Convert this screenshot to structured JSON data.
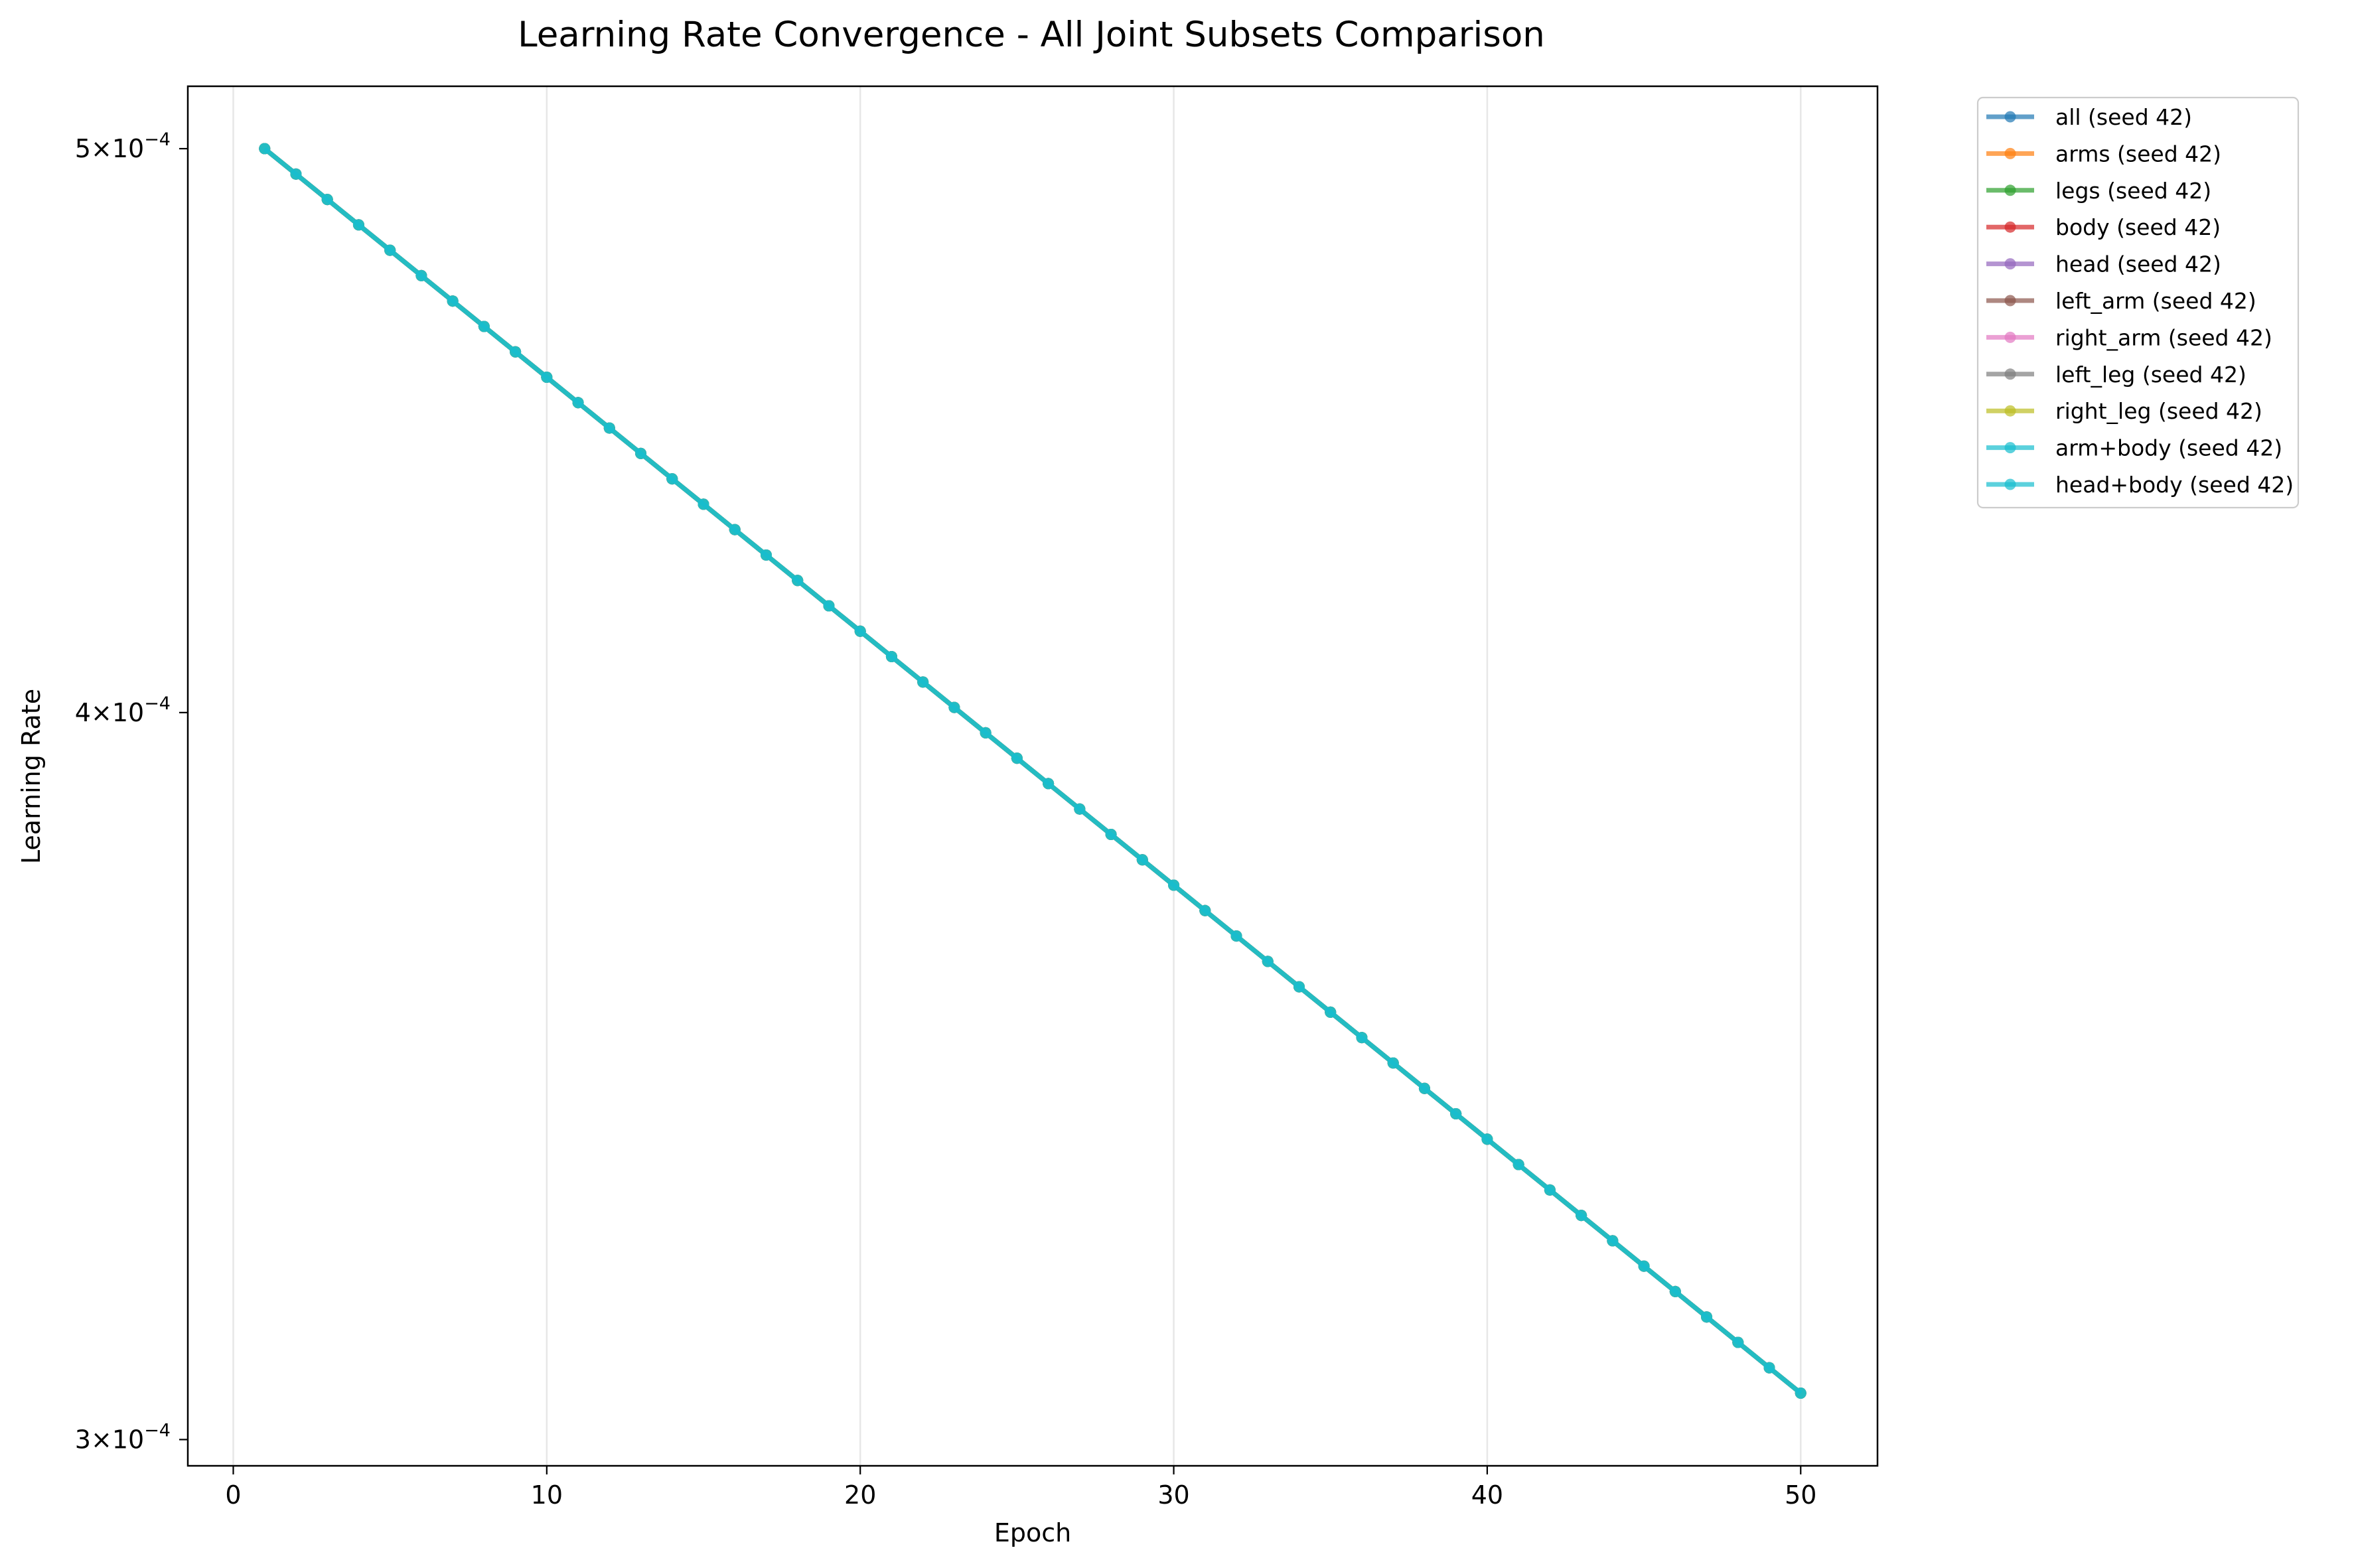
{
  "chart_data": {
    "type": "line",
    "title": "Learning Rate Convergence - All Joint Subsets Comparison",
    "xlabel": "Epoch",
    "ylabel": "Learning Rate",
    "xlim": [
      -1.45,
      52.45
    ],
    "ylim": [
      0.0002969,
      0.0005125
    ],
    "yscale": "log",
    "grid": "x-only",
    "legend_placement": "outside-top-right",
    "x_ticks": [
      0,
      10,
      20,
      30,
      40,
      50
    ],
    "y_ticks": [
      {
        "value": 0.0005,
        "mantissa": "5",
        "exponent": "−4"
      },
      {
        "value": 0.0004,
        "mantissa": "4",
        "exponent": "−4"
      },
      {
        "value": 0.0003,
        "mantissa": "3",
        "exponent": "−4"
      }
    ],
    "x": [
      1,
      2,
      3,
      4,
      5,
      6,
      7,
      8,
      9,
      10,
      11,
      12,
      13,
      14,
      15,
      16,
      17,
      18,
      19,
      20,
      21,
      22,
      23,
      24,
      25,
      26,
      27,
      28,
      29,
      30,
      31,
      32,
      33,
      34,
      35,
      36,
      37,
      38,
      39,
      40,
      41,
      42,
      43,
      44,
      45,
      46,
      47,
      48,
      49,
      50
    ],
    "shared_values": [
      0.0005,
      0.000495,
      0.00049005,
      0.00048515,
      0.000480298,
      0.000475495,
      0.00047074,
      0.000466033,
      0.000461372,
      0.000456759,
      0.000452191,
      0.000447669,
      0.000443192,
      0.00043876,
      0.000434373,
      0.000430029,
      0.000425729,
      0.000421471,
      0.000417257,
      0.000413084,
      0.000408953,
      0.000404864,
      0.000400815,
      0.000396807,
      0.000392839,
      0.000388911,
      0.000385021,
      0.000381171,
      0.000377359,
      0.000373586,
      0.00036985,
      0.000366151,
      0.00036249,
      0.000358865,
      0.000355276,
      0.000351723,
      0.000348206,
      0.000344724,
      0.000341277,
      0.000337864,
      0.000334486,
      0.000331141,
      0.000327829,
      0.000324551,
      0.000321306,
      0.000318093,
      0.000314912,
      0.000311763,
      0.000308645,
      0.000305559
    ],
    "series": [
      {
        "name": "all (seed 42)",
        "color": "#1f77b4"
      },
      {
        "name": "arms (seed 42)",
        "color": "#ff7f0e"
      },
      {
        "name": "legs (seed 42)",
        "color": "#2ca02c"
      },
      {
        "name": "body (seed 42)",
        "color": "#d62728"
      },
      {
        "name": "head (seed 42)",
        "color": "#9467bd"
      },
      {
        "name": "left_arm (seed 42)",
        "color": "#8c564b"
      },
      {
        "name": "right_arm (seed 42)",
        "color": "#e377c2"
      },
      {
        "name": "left_leg (seed 42)",
        "color": "#7f7f7f"
      },
      {
        "name": "right_leg (seed 42)",
        "color": "#bcbd22"
      },
      {
        "name": "arm+body (seed 42)",
        "color": "#17becf"
      },
      {
        "name": "head+body (seed 42)",
        "color": "#17becf"
      }
    ]
  }
}
